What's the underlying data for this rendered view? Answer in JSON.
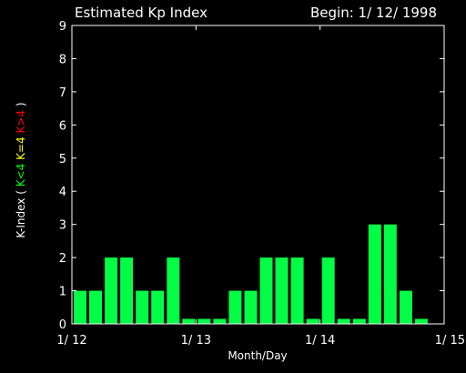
{
  "chart_data": {
    "type": "bar",
    "title": "Estimated Kp Index",
    "begin_label": "Begin: 1/ 12/ 1998",
    "xlabel": "Month/Day",
    "ylabel_parts": [
      {
        "text": "K-Index ( ",
        "color": "#ffffff"
      },
      {
        "text": "K<4",
        "color": "#00ff00"
      },
      {
        "text": "  ",
        "color": "#ffffff"
      },
      {
        "text": "K=4",
        "color": "#ffff00"
      },
      {
        "text": "  ",
        "color": "#ffffff"
      },
      {
        "text": "K>4",
        "color": "#ff0000"
      },
      {
        "text": " )",
        "color": "#ffffff"
      }
    ],
    "ylim": [
      0,
      9
    ],
    "yticks": [
      "0",
      "1",
      "2",
      "3",
      "4",
      "5",
      "6",
      "7",
      "8",
      "9"
    ],
    "xticks": [
      "1/ 12",
      "1/ 13",
      "1/ 14",
      "1/ 15"
    ],
    "bar_color": "#00ff44",
    "values": [
      1,
      1,
      2,
      2,
      1,
      1,
      2,
      0.15,
      0.15,
      0.15,
      1,
      1,
      2,
      2,
      2,
      0.15,
      2,
      0.15,
      0.15,
      3,
      3,
      1,
      0.15,
      0
    ]
  }
}
